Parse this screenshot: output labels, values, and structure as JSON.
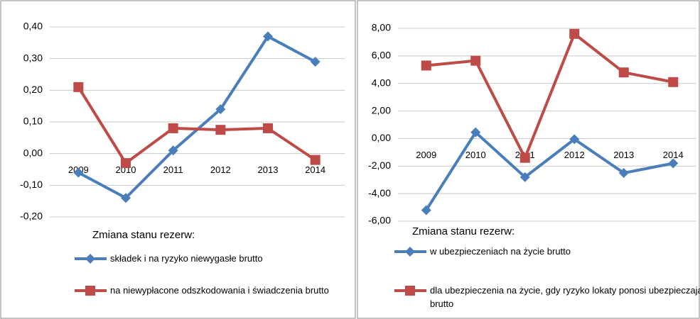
{
  "chart_data": [
    {
      "type": "line",
      "legend_title": "Zmiana stanu rezerw:",
      "categories": [
        "2009",
        "2010",
        "2011",
        "2012",
        "2013",
        "2014"
      ],
      "series": [
        {
          "name": "składek i na ryzyko niewygasłe brutto",
          "color": "#4a7ebb",
          "marker": "diamond",
          "values": [
            -0.06,
            -0.14,
            0.01,
            0.14,
            0.37,
            0.29
          ]
        },
        {
          "name": "na niewypłacone odszkodowania i świadczenia brutto",
          "color": "#be4b48",
          "marker": "square",
          "values": [
            0.21,
            -0.03,
            0.08,
            0.075,
            0.08,
            -0.02
          ]
        }
      ],
      "ylim": [
        -0.2,
        0.4
      ],
      "yticks": [
        {
          "value": 0.4,
          "label": "0,40"
        },
        {
          "value": 0.3,
          "label": "0,30"
        },
        {
          "value": 0.2,
          "label": "0,20"
        },
        {
          "value": 0.1,
          "label": "0,10"
        },
        {
          "value": 0,
          "label": "0,00"
        },
        {
          "value": -0.1,
          "label": "-0,10"
        },
        {
          "value": -0.2,
          "label": "-0,20"
        }
      ],
      "grid": true
    },
    {
      "type": "line",
      "legend_title": "Zmiana stanu rezerw:",
      "categories": [
        "2009",
        "2010",
        "2011",
        "2012",
        "2013",
        "2014"
      ],
      "series": [
        {
          "name": "w ubezpieczeniach na życie brutto",
          "color": "#4a7ebb",
          "marker": "diamond",
          "values": [
            -5.2,
            0.45,
            -2.8,
            -0.05,
            -2.5,
            -1.8
          ]
        },
        {
          "name": "dla ubezpieczenia na życie, gdy ryzyko lokaty ponosi ubezpieczający brutto",
          "color": "#be4b48",
          "marker": "square",
          "values": [
            5.3,
            5.65,
            -1.4,
            7.6,
            4.8,
            4.1
          ]
        }
      ],
      "ylim": [
        -6,
        8
      ],
      "yticks": [
        {
          "value": 8,
          "label": "8,00"
        },
        {
          "value": 6,
          "label": "6,00"
        },
        {
          "value": 4,
          "label": "4,00"
        },
        {
          "value": 2,
          "label": "2,00"
        },
        {
          "value": 0,
          "label": "0,00"
        },
        {
          "value": -2,
          "label": "-2,00"
        },
        {
          "value": -4,
          "label": "-4,00"
        },
        {
          "value": -6,
          "label": "-6,00"
        }
      ],
      "grid": true
    }
  ]
}
